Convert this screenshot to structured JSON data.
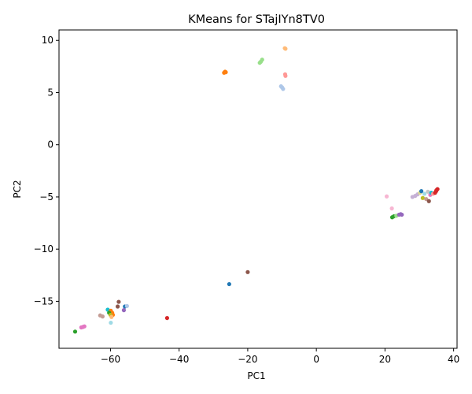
{
  "chart_data": {
    "type": "scatter",
    "title": "KMeans for STajIYn8TV0",
    "xlabel": "PC1",
    "ylabel": "PC2",
    "xlim": [
      -75,
      41
    ],
    "ylim": [
      -19.5,
      11
    ],
    "xticks": [
      -60,
      -40,
      -20,
      0,
      20,
      40
    ],
    "yticks": [
      -15,
      -10,
      -5,
      0,
      5,
      10
    ],
    "grid": false,
    "legend": "none",
    "points": [
      {
        "x": -9.2,
        "y": 9.25,
        "color": "#ffbb78"
      },
      {
        "x": -9.0,
        "y": 9.2,
        "color": "#ffbb78"
      },
      {
        "x": -15.8,
        "y": 8.15,
        "color": "#98df8a"
      },
      {
        "x": -16.2,
        "y": 7.95,
        "color": "#98df8a"
      },
      {
        "x": -16.5,
        "y": 7.85,
        "color": "#98df8a"
      },
      {
        "x": -26.6,
        "y": 7.0,
        "color": "#ff7f0e"
      },
      {
        "x": -26.9,
        "y": 6.9,
        "color": "#ff7f0e"
      },
      {
        "x": -26.4,
        "y": 6.95,
        "color": "#ff7f0e"
      },
      {
        "x": -9.1,
        "y": 6.75,
        "color": "#ff9896"
      },
      {
        "x": -9.0,
        "y": 6.6,
        "color": "#ff9896"
      },
      {
        "x": -10.3,
        "y": 5.6,
        "color": "#aec7e8"
      },
      {
        "x": -10.0,
        "y": 5.5,
        "color": "#aec7e8"
      },
      {
        "x": -9.7,
        "y": 5.35,
        "color": "#aec7e8"
      },
      {
        "x": 20.5,
        "y": -4.95,
        "color": "#f7b6d2"
      },
      {
        "x": 22.0,
        "y": -6.1,
        "color": "#f7b6d2"
      },
      {
        "x": 28.0,
        "y": -5.0,
        "color": "#c5b0d5"
      },
      {
        "x": 28.8,
        "y": -4.9,
        "color": "#c5b0d5"
      },
      {
        "x": 29.5,
        "y": -4.75,
        "color": "#c5b0d5"
      },
      {
        "x": 30.2,
        "y": -4.6,
        "color": "#dbdb8d"
      },
      {
        "x": 30.6,
        "y": -4.45,
        "color": "#1f77b4"
      },
      {
        "x": 31.0,
        "y": -5.1,
        "color": "#bcbd22"
      },
      {
        "x": 31.5,
        "y": -4.7,
        "color": "#9edae5"
      },
      {
        "x": 32.0,
        "y": -5.2,
        "color": "#c49c94"
      },
      {
        "x": 32.5,
        "y": -4.5,
        "color": "#c7c7c7"
      },
      {
        "x": 32.8,
        "y": -5.4,
        "color": "#8c564b"
      },
      {
        "x": 33.2,
        "y": -4.8,
        "color": "#e377c2"
      },
      {
        "x": 33.5,
        "y": -4.6,
        "color": "#17becf"
      },
      {
        "x": 34.0,
        "y": -4.7,
        "color": "#ff9896"
      },
      {
        "x": 34.6,
        "y": -4.6,
        "color": "#d62728"
      },
      {
        "x": 34.9,
        "y": -4.45,
        "color": "#d62728"
      },
      {
        "x": 35.3,
        "y": -4.25,
        "color": "#d62728"
      },
      {
        "x": 35.0,
        "y": -4.35,
        "color": "#d62728"
      },
      {
        "x": 22.1,
        "y": -6.95,
        "color": "#2ca02c"
      },
      {
        "x": 22.6,
        "y": -6.85,
        "color": "#2ca02c"
      },
      {
        "x": 23.3,
        "y": -6.8,
        "color": "#98df8a"
      },
      {
        "x": 24.1,
        "y": -6.7,
        "color": "#9467bd"
      },
      {
        "x": 24.6,
        "y": -6.65,
        "color": "#9467bd"
      },
      {
        "x": 24.9,
        "y": -6.7,
        "color": "#9467bd"
      },
      {
        "x": -20.0,
        "y": -12.2,
        "color": "#8c564b"
      },
      {
        "x": -25.4,
        "y": -13.35,
        "color": "#1f77b4"
      },
      {
        "x": -57.6,
        "y": -15.05,
        "color": "#8c564b"
      },
      {
        "x": -57.9,
        "y": -15.5,
        "color": "#8c564b"
      },
      {
        "x": -55.8,
        "y": -15.5,
        "color": "#1f77b4"
      },
      {
        "x": -55.2,
        "y": -15.45,
        "color": "#aec7e8"
      },
      {
        "x": -56.1,
        "y": -15.85,
        "color": "#9467bd"
      },
      {
        "x": -60.8,
        "y": -15.8,
        "color": "#17becf"
      },
      {
        "x": -59.9,
        "y": -15.9,
        "color": "#ff7f0e"
      },
      {
        "x": -59.5,
        "y": -16.1,
        "color": "#ff7f0e"
      },
      {
        "x": -59.3,
        "y": -16.3,
        "color": "#ff7f0e"
      },
      {
        "x": -60.4,
        "y": -16.1,
        "color": "#2ca02c"
      },
      {
        "x": -60.0,
        "y": -16.3,
        "color": "#bcbd22"
      },
      {
        "x": -59.7,
        "y": -16.5,
        "color": "#ffbb78"
      },
      {
        "x": -63.0,
        "y": -16.35,
        "color": "#c49c94"
      },
      {
        "x": -62.3,
        "y": -16.45,
        "color": "#c49c94"
      },
      {
        "x": -59.9,
        "y": -17.05,
        "color": "#9edae5"
      },
      {
        "x": -43.5,
        "y": -16.6,
        "color": "#d62728"
      },
      {
        "x": -68.5,
        "y": -17.5,
        "color": "#e377c2"
      },
      {
        "x": -68.0,
        "y": -17.45,
        "color": "#e377c2"
      },
      {
        "x": -67.6,
        "y": -17.4,
        "color": "#e377c2"
      },
      {
        "x": -70.3,
        "y": -17.9,
        "color": "#2ca02c"
      }
    ]
  }
}
